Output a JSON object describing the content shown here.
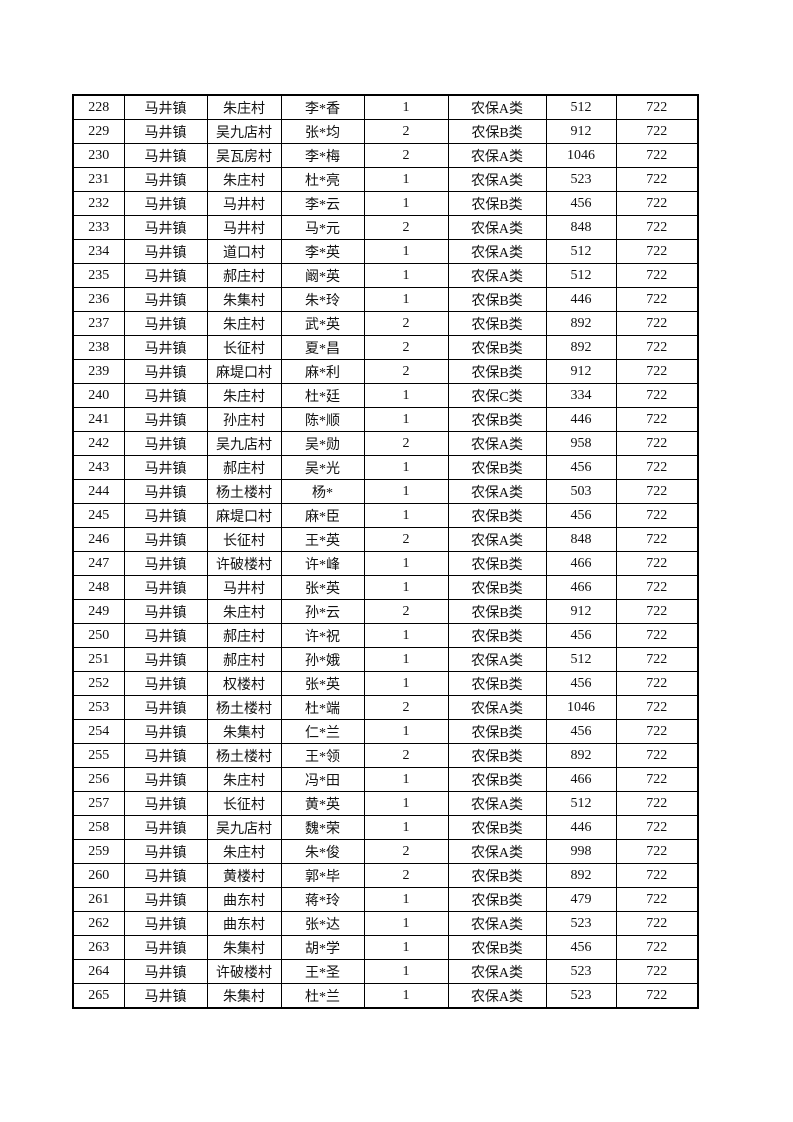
{
  "table": {
    "rows": [
      [
        "228",
        "马井镇",
        "朱庄村",
        "李*香",
        "1",
        "农保A类",
        "512",
        "722"
      ],
      [
        "229",
        "马井镇",
        "吴九店村",
        "张*均",
        "2",
        "农保B类",
        "912",
        "722"
      ],
      [
        "230",
        "马井镇",
        "吴瓦房村",
        "李*梅",
        "2",
        "农保A类",
        "1046",
        "722"
      ],
      [
        "231",
        "马井镇",
        "朱庄村",
        "杜*亮",
        "1",
        "农保A类",
        "523",
        "722"
      ],
      [
        "232",
        "马井镇",
        "马井村",
        "李*云",
        "1",
        "农保B类",
        "456",
        "722"
      ],
      [
        "233",
        "马井镇",
        "马井村",
        "马*元",
        "2",
        "农保A类",
        "848",
        "722"
      ],
      [
        "234",
        "马井镇",
        "道口村",
        "李*英",
        "1",
        "农保A类",
        "512",
        "722"
      ],
      [
        "235",
        "马井镇",
        "郝庄村",
        "阚*英",
        "1",
        "农保A类",
        "512",
        "722"
      ],
      [
        "236",
        "马井镇",
        "朱集村",
        "朱*玲",
        "1",
        "农保B类",
        "446",
        "722"
      ],
      [
        "237",
        "马井镇",
        "朱庄村",
        "武*英",
        "2",
        "农保B类",
        "892",
        "722"
      ],
      [
        "238",
        "马井镇",
        "长征村",
        "夏*昌",
        "2",
        "农保B类",
        "892",
        "722"
      ],
      [
        "239",
        "马井镇",
        "麻堤口村",
        "麻*利",
        "2",
        "农保B类",
        "912",
        "722"
      ],
      [
        "240",
        "马井镇",
        "朱庄村",
        "杜*廷",
        "1",
        "农保C类",
        "334",
        "722"
      ],
      [
        "241",
        "马井镇",
        "孙庄村",
        "陈*顺",
        "1",
        "农保B类",
        "446",
        "722"
      ],
      [
        "242",
        "马井镇",
        "吴九店村",
        "吴*勋",
        "2",
        "农保A类",
        "958",
        "722"
      ],
      [
        "243",
        "马井镇",
        "郝庄村",
        "吴*光",
        "1",
        "农保B类",
        "456",
        "722"
      ],
      [
        "244",
        "马井镇",
        "杨土楼村",
        "杨*",
        "1",
        "农保A类",
        "503",
        "722"
      ],
      [
        "245",
        "马井镇",
        "麻堤口村",
        "麻*臣",
        "1",
        "农保B类",
        "456",
        "722"
      ],
      [
        "246",
        "马井镇",
        "长征村",
        "王*英",
        "2",
        "农保A类",
        "848",
        "722"
      ],
      [
        "247",
        "马井镇",
        "许破楼村",
        "许*峰",
        "1",
        "农保B类",
        "466",
        "722"
      ],
      [
        "248",
        "马井镇",
        "马井村",
        "张*英",
        "1",
        "农保B类",
        "466",
        "722"
      ],
      [
        "249",
        "马井镇",
        "朱庄村",
        "孙*云",
        "2",
        "农保B类",
        "912",
        "722"
      ],
      [
        "250",
        "马井镇",
        "郝庄村",
        "许*祝",
        "1",
        "农保B类",
        "456",
        "722"
      ],
      [
        "251",
        "马井镇",
        "郝庄村",
        "孙*娥",
        "1",
        "农保A类",
        "512",
        "722"
      ],
      [
        "252",
        "马井镇",
        "权楼村",
        "张*英",
        "1",
        "农保B类",
        "456",
        "722"
      ],
      [
        "253",
        "马井镇",
        "杨土楼村",
        "杜*端",
        "2",
        "农保A类",
        "1046",
        "722"
      ],
      [
        "254",
        "马井镇",
        "朱集村",
        "仁*兰",
        "1",
        "农保B类",
        "456",
        "722"
      ],
      [
        "255",
        "马井镇",
        "杨土楼村",
        "王*领",
        "2",
        "农保B类",
        "892",
        "722"
      ],
      [
        "256",
        "马井镇",
        "朱庄村",
        "冯*田",
        "1",
        "农保B类",
        "466",
        "722"
      ],
      [
        "257",
        "马井镇",
        "长征村",
        "黄*英",
        "1",
        "农保A类",
        "512",
        "722"
      ],
      [
        "258",
        "马井镇",
        "吴九店村",
        "魏*荣",
        "1",
        "农保B类",
        "446",
        "722"
      ],
      [
        "259",
        "马井镇",
        "朱庄村",
        "朱*俊",
        "2",
        "农保A类",
        "998",
        "722"
      ],
      [
        "260",
        "马井镇",
        "黄楼村",
        "郭*毕",
        "2",
        "农保B类",
        "892",
        "722"
      ],
      [
        "261",
        "马井镇",
        "曲东村",
        "蒋*玲",
        "1",
        "农保B类",
        "479",
        "722"
      ],
      [
        "262",
        "马井镇",
        "曲东村",
        "张*达",
        "1",
        "农保A类",
        "523",
        "722"
      ],
      [
        "263",
        "马井镇",
        "朱集村",
        "胡*学",
        "1",
        "农保B类",
        "456",
        "722"
      ],
      [
        "264",
        "马井镇",
        "许破楼村",
        "王*圣",
        "1",
        "农保A类",
        "523",
        "722"
      ],
      [
        "265",
        "马井镇",
        "朱集村",
        "杜*兰",
        "1",
        "农保A类",
        "523",
        "722"
      ]
    ]
  }
}
